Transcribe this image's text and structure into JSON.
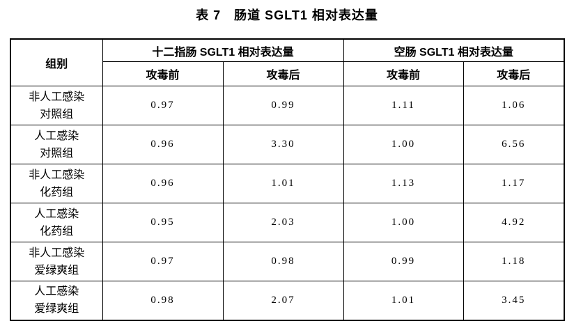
{
  "title": "表 7　肠道 SGLT1 相对表达量",
  "table": {
    "group_header": "组别",
    "sections": [
      {
        "label": "十二指肠 SGLT1 相对表达量",
        "sub": [
          "攻毒前",
          "攻毒后"
        ]
      },
      {
        "label": "空肠 SGLT1 相对表达量",
        "sub": [
          "攻毒前",
          "攻毒后"
        ]
      }
    ],
    "rows": [
      {
        "group": [
          "非人工感染",
          "对照组"
        ],
        "values": [
          "0.97",
          "0.99",
          "1.11",
          "1.06"
        ]
      },
      {
        "group": [
          "人工感染",
          "对照组"
        ],
        "values": [
          "0.96",
          "3.30",
          "1.00",
          "6.56"
        ]
      },
      {
        "group": [
          "非人工感染",
          "化药组"
        ],
        "values": [
          "0.96",
          "1.01",
          "1.13",
          "1.17"
        ]
      },
      {
        "group": [
          "人工感染",
          "化药组"
        ],
        "values": [
          "0.95",
          "2.03",
          "1.00",
          "4.92"
        ]
      },
      {
        "group": [
          "非人工感染",
          "爱绿爽组"
        ],
        "values": [
          "0.97",
          "0.98",
          "0.99",
          "1.18"
        ]
      },
      {
        "group": [
          "人工感染",
          "爱绿爽组"
        ],
        "values": [
          "0.98",
          "2.07",
          "1.01",
          "3.45"
        ]
      }
    ]
  },
  "chart_data": {
    "type": "table",
    "title": "表 7 肠道 SGLT1 相对表达量",
    "columns": [
      "组别",
      "十二指肠 SGLT1 相对表达量 - 攻毒前",
      "十二指肠 SGLT1 相对表达量 - 攻毒后",
      "空肠 SGLT1 相对表达量 - 攻毒前",
      "空肠 SGLT1 相对表达量 - 攻毒后"
    ],
    "rows": [
      [
        "非人工感染对照组",
        0.97,
        0.99,
        1.11,
        1.06
      ],
      [
        "人工感染对照组",
        0.96,
        3.3,
        1.0,
        6.56
      ],
      [
        "非人工感染化药组",
        0.96,
        1.01,
        1.13,
        1.17
      ],
      [
        "人工感染化药组",
        0.95,
        2.03,
        1.0,
        4.92
      ],
      [
        "非人工感染爱绿爽组",
        0.97,
        0.98,
        0.99,
        1.18
      ],
      [
        "人工感染爱绿爽组",
        0.98,
        2.07,
        1.01,
        3.45
      ]
    ],
    "colors": {
      "text": "#000000",
      "border": "#000000",
      "background": "#ffffff"
    }
  }
}
